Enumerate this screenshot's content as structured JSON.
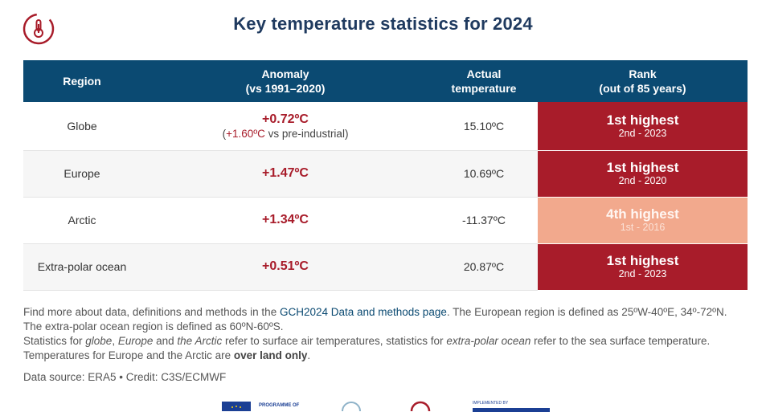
{
  "title": "Key temperature statistics for 2024",
  "table": {
    "headers": {
      "region": "Region",
      "anomaly_line1": "Anomaly",
      "anomaly_line2": "(vs 1991–2020)",
      "actual_line1": "Actual",
      "actual_line2": "temperature",
      "rank_line1": "Rank",
      "rank_line2": "(out of 85 years)"
    },
    "rows": [
      {
        "region": "Globe",
        "anomaly": "+0.72ºC",
        "anomaly_sub_open": "(",
        "anomaly_sub_value": "+1.60ºC",
        "anomaly_sub_rest": " vs pre-industrial)",
        "actual": "15.10ºC",
        "rank": "1st highest",
        "rank_sub": "2nd - 2023"
      },
      {
        "region": "Europe",
        "anomaly": "+1.47ºC",
        "actual": "10.69ºC",
        "rank": "1st highest",
        "rank_sub": "2nd - 2020"
      },
      {
        "region": "Arctic",
        "anomaly": "+1.34ºC",
        "actual": "-11.37ºC",
        "rank": "4th highest",
        "rank_sub": "1st - 2016"
      },
      {
        "region": "Extra-polar ocean",
        "anomaly": "+0.51ºC",
        "actual": "20.87ºC",
        "rank": "1st highest",
        "rank_sub": "2nd - 2023"
      }
    ]
  },
  "notes": {
    "p1_a": "Find more about data, definitions and methods in the ",
    "p1_link": "GCH2024 Data and methods page",
    "p1_b": ". The European region is defined as 25ºW-40ºE, 34º-72ºN. The extra-polar ocean region is defined as 60ºN-60ºS.",
    "p2_a": "Statistics for ",
    "p2_globe": "globe",
    "p2_b": ", ",
    "p2_europe": "Europe",
    "p2_c": " and ",
    "p2_arctic": "the Arctic",
    "p2_d": " refer to surface air temperatures, statistics for ",
    "p2_ocean": "extra-polar ocean",
    "p2_e": " refer to the sea surface temperature.",
    "p3_a": "Temperatures for Europe and the Arctic are ",
    "p3_bold": "over land only",
    "p3_b": "."
  },
  "credit": "Data source: ERA5 • Credit: C3S/ECMWF",
  "footer": {
    "programme_label": "PROGRAMME OF",
    "implemented_by": "IMPLEMENTED BY"
  },
  "colors": {
    "header_bg": "#0b4a72",
    "title": "#1f3a5f",
    "anomaly_red": "#a81c2a",
    "rank_dark": "#a81c2a",
    "rank_light": "#f2a98d"
  }
}
